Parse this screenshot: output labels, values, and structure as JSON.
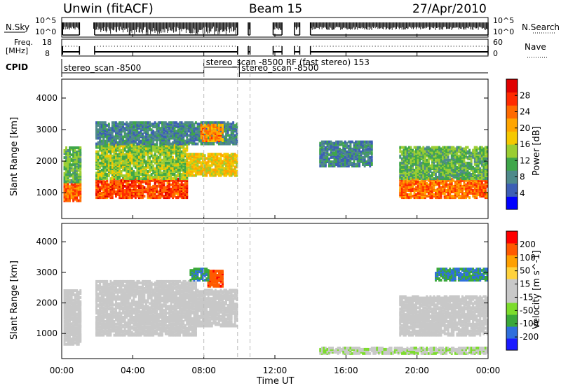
{
  "header": {
    "station": "Unwin (fitACF)",
    "beam": "Beam 15",
    "date": "27/Apr/2010"
  },
  "summary_panels": {
    "nsky_label": "N.Sky",
    "nsearch_label": "N.Search",
    "freq_label_1": "Freq.",
    "freq_label_2": "[MHz]",
    "nave_label": "Nave",
    "cpid_label": "CPID",
    "noise_ticks": [
      "10^5",
      "10^0"
    ],
    "freq_ticks": [
      "18",
      "8"
    ],
    "nave_ticks": [
      "60",
      "0"
    ],
    "cpid_entries": [
      {
        "start_ut": 0.0,
        "label": "stereo_scan -8500"
      },
      {
        "start_ut": 8.0,
        "label": "stereo_scan -8500 RF (fast stereo) 153"
      },
      {
        "start_ut": 10.0,
        "label": "stereo_scan -8500"
      }
    ]
  },
  "x_axis": {
    "label": "Time UT",
    "ticks": [
      "00:00",
      "04:00",
      "08:00",
      "12:00",
      "16:00",
      "20:00",
      "00:00"
    ]
  },
  "colors": {
    "power_scale": [
      "#0000ff",
      "#3d5fb5",
      "#4f8a8b",
      "#3fa64a",
      "#9acd32",
      "#f5c800",
      "#ffa500",
      "#ff6a00",
      "#ff2a00",
      "#e00000"
    ],
    "velocity_scale": [
      "#1a1aff",
      "#2f6fdc",
      "#3aa83a",
      "#7cdc2c",
      "#c8c8c8",
      "#c8c8c8",
      "#ffd23c",
      "#ffa000",
      "#ff5a00",
      "#ff0000"
    ]
  },
  "chart_data": [
    {
      "type": "heatmap",
      "title": "Power",
      "xlabel": "Time UT",
      "ylabel": "Slant Range [km]",
      "xlim_ut_hours": [
        0,
        24
      ],
      "ylim_km": [
        180,
        4600
      ],
      "y_ticks": [
        1000,
        2000,
        3000,
        4000
      ],
      "colorbar": {
        "label": "Power [dB]",
        "ticks": [
          4,
          8,
          12,
          16,
          20,
          24,
          28
        ],
        "range": [
          0,
          32
        ]
      },
      "data_gaps_ut": [
        [
          1.0,
          1.8
        ],
        [
          9.9,
          10.5
        ],
        [
          10.6,
          11.9
        ],
        [
          12.4,
          13.1
        ],
        [
          13.4,
          14.0
        ]
      ],
      "echo_regions": [
        {
          "t0": 0.1,
          "t1": 1.0,
          "r0": 700,
          "r1": 1300,
          "value": 24
        },
        {
          "t0": 0.1,
          "t1": 1.0,
          "r0": 1300,
          "r1": 2400,
          "value": 12
        },
        {
          "t0": 1.9,
          "t1": 7.0,
          "r0": 800,
          "r1": 1400,
          "value": 26
        },
        {
          "t0": 1.9,
          "t1": 7.0,
          "r0": 1400,
          "r1": 2500,
          "value": 14
        },
        {
          "t0": 1.9,
          "t1": 9.8,
          "r0": 2500,
          "r1": 3200,
          "value": 8
        },
        {
          "t0": 7.0,
          "t1": 9.8,
          "r0": 1500,
          "r1": 2200,
          "value": 18
        },
        {
          "t0": 7.8,
          "t1": 9.0,
          "r0": 2600,
          "r1": 3100,
          "value": 22
        },
        {
          "t0": 14.5,
          "t1": 17.5,
          "r0": 1800,
          "r1": 2600,
          "value": 8
        },
        {
          "t0": 19.0,
          "t1": 24.0,
          "r0": 800,
          "r1": 1400,
          "value": 24
        },
        {
          "t0": 19.0,
          "t1": 24.0,
          "r0": 1400,
          "r1": 2400,
          "value": 12
        }
      ]
    },
    {
      "type": "heatmap",
      "title": "Velocity",
      "xlabel": "Time UT",
      "ylabel": "Slant Range [km]",
      "xlim_ut_hours": [
        0,
        24
      ],
      "ylim_km": [
        180,
        4600
      ],
      "y_ticks": [
        1000,
        2000,
        3000,
        4000
      ],
      "colorbar": {
        "label": "Velocity [m s^-1]",
        "ticks": [
          200,
          100,
          50,
          15,
          -15,
          -50,
          -100,
          -200
        ],
        "range": [
          -250,
          250
        ]
      },
      "data_gaps_ut": [
        [
          1.0,
          1.8
        ],
        [
          9.9,
          10.5
        ],
        [
          10.6,
          11.9
        ],
        [
          12.4,
          13.1
        ],
        [
          13.4,
          14.0
        ]
      ],
      "echo_regions": [
        {
          "t0": 0.1,
          "t1": 1.0,
          "r0": 600,
          "r1": 2400,
          "value": 0
        },
        {
          "t0": 1.9,
          "t1": 7.5,
          "r0": 900,
          "r1": 2700,
          "value": -20
        },
        {
          "t0": 7.5,
          "t1": 9.8,
          "r0": 1200,
          "r1": 2400,
          "value": 0
        },
        {
          "t0": 8.2,
          "t1": 9.0,
          "r0": 2500,
          "r1": 3000,
          "value": 180
        },
        {
          "t0": 7.2,
          "t1": 8.2,
          "r0": 2700,
          "r1": 3100,
          "value": -150
        },
        {
          "t0": 14.5,
          "t1": 24.0,
          "r0": 300,
          "r1": 500,
          "value": -40
        },
        {
          "t0": 19.0,
          "t1": 24.0,
          "r0": 900,
          "r1": 2200,
          "value": 0
        },
        {
          "t0": 21.0,
          "t1": 24.0,
          "r0": 2700,
          "r1": 3100,
          "value": -150
        }
      ]
    }
  ]
}
